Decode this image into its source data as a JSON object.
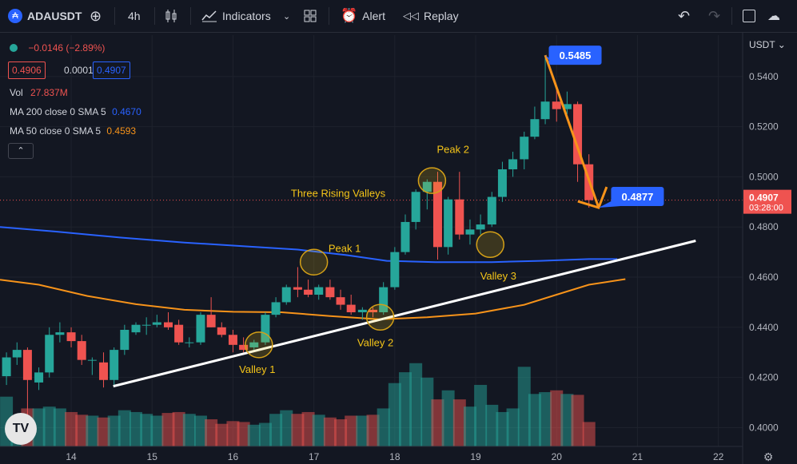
{
  "toolbar": {
    "symbol": "ADAUSDT",
    "interval": "4h",
    "indicators_label": "Indicators",
    "alert_label": "Alert",
    "replay_label": "Replay"
  },
  "legend": {
    "change": "−0.0146 (−2.89%)",
    "bid": "0.4906",
    "spread": "0.0001",
    "ask": "0.4907",
    "vol_label": "Vol",
    "vol_value": "27.837M",
    "ma200_label": "MA 200 close 0 SMA 5",
    "ma200_value": "0.4670",
    "ma50_label": "MA 50 close 0 SMA 5",
    "ma50_value": "0.4593"
  },
  "colors": {
    "up": "#26a69a",
    "down": "#ef5350",
    "ma200": "#2962ff",
    "ma50": "#f7931a",
    "annotation": "#f5c518",
    "callout": "#2962ff"
  },
  "chart_data": {
    "type": "candlestick",
    "symbol": "ADAUSDT",
    "currency_label": "USDT",
    "interval": "4h",
    "ylim": [
      0.3925,
      0.5565
    ],
    "y_ticks": [
      0.4,
      0.42,
      0.44,
      0.46,
      0.48,
      0.5,
      0.52,
      0.54
    ],
    "y_tick_labels": [
      "0.4000",
      "0.4200",
      "0.4400",
      "0.4600",
      "0.4800",
      "0.5000",
      "0.5200",
      "0.5400"
    ],
    "x_range": [
      13.12,
      22.3
    ],
    "x_ticks": [
      14,
      15,
      16,
      17,
      18,
      19,
      20,
      21,
      22
    ],
    "x_tick_labels": [
      "14",
      "15",
      "16",
      "17",
      "18",
      "19",
      "20",
      "21",
      "22"
    ],
    "grid": true,
    "candles": [
      {
        "x": 13.2,
        "o": 0.4205,
        "h": 0.43,
        "l": 0.417,
        "c": 0.428
      },
      {
        "x": 13.33,
        "o": 0.428,
        "h": 0.434,
        "l": 0.425,
        "c": 0.431
      },
      {
        "x": 13.46,
        "o": 0.431,
        "h": 0.432,
        "l": 0.398,
        "c": 0.419
      },
      {
        "x": 13.6,
        "o": 0.418,
        "h": 0.424,
        "l": 0.415,
        "c": 0.422
      },
      {
        "x": 13.73,
        "o": 0.422,
        "h": 0.44,
        "l": 0.42,
        "c": 0.437
      },
      {
        "x": 13.86,
        "o": 0.437,
        "h": 0.442,
        "l": 0.434,
        "c": 0.438
      },
      {
        "x": 14.0,
        "o": 0.438,
        "h": 0.44,
        "l": 0.432,
        "c": 0.4345
      },
      {
        "x": 14.13,
        "o": 0.4345,
        "h": 0.437,
        "l": 0.425,
        "c": 0.427
      },
      {
        "x": 14.26,
        "o": 0.427,
        "h": 0.428,
        "l": 0.421,
        "c": 0.427
      },
      {
        "x": 14.4,
        "o": 0.426,
        "h": 0.43,
        "l": 0.416,
        "c": 0.419
      },
      {
        "x": 14.53,
        "o": 0.419,
        "h": 0.432,
        "l": 0.417,
        "c": 0.431
      },
      {
        "x": 14.66,
        "o": 0.431,
        "h": 0.441,
        "l": 0.429,
        "c": 0.439
      },
      {
        "x": 14.8,
        "o": 0.438,
        "h": 0.442,
        "l": 0.437,
        "c": 0.441
      },
      {
        "x": 14.93,
        "o": 0.441,
        "h": 0.444,
        "l": 0.437,
        "c": 0.441
      },
      {
        "x": 15.06,
        "o": 0.441,
        "h": 0.445,
        "l": 0.44,
        "c": 0.442
      },
      {
        "x": 15.2,
        "o": 0.442,
        "h": 0.446,
        "l": 0.439,
        "c": 0.44
      },
      {
        "x": 15.33,
        "o": 0.441,
        "h": 0.443,
        "l": 0.433,
        "c": 0.434
      },
      {
        "x": 15.46,
        "o": 0.434,
        "h": 0.436,
        "l": 0.432,
        "c": 0.434
      },
      {
        "x": 15.6,
        "o": 0.434,
        "h": 0.446,
        "l": 0.433,
        "c": 0.445
      },
      {
        "x": 15.73,
        "o": 0.445,
        "h": 0.452,
        "l": 0.44,
        "c": 0.44
      },
      {
        "x": 15.86,
        "o": 0.44,
        "h": 0.442,
        "l": 0.436,
        "c": 0.437
      },
      {
        "x": 16.0,
        "o": 0.437,
        "h": 0.439,
        "l": 0.43,
        "c": 0.433
      },
      {
        "x": 16.13,
        "o": 0.433,
        "h": 0.436,
        "l": 0.43,
        "c": 0.431
      },
      {
        "x": 16.26,
        "o": 0.432,
        "h": 0.435,
        "l": 0.431,
        "c": 0.434
      },
      {
        "x": 16.4,
        "o": 0.434,
        "h": 0.446,
        "l": 0.433,
        "c": 0.445
      },
      {
        "x": 16.53,
        "o": 0.445,
        "h": 0.452,
        "l": 0.444,
        "c": 0.45
      },
      {
        "x": 16.66,
        "o": 0.45,
        "h": 0.457,
        "l": 0.449,
        "c": 0.456
      },
      {
        "x": 16.8,
        "o": 0.456,
        "h": 0.464,
        "l": 0.452,
        "c": 0.455
      },
      {
        "x": 16.93,
        "o": 0.455,
        "h": 0.459,
        "l": 0.452,
        "c": 0.453
      },
      {
        "x": 17.06,
        "o": 0.453,
        "h": 0.457,
        "l": 0.451,
        "c": 0.456
      },
      {
        "x": 17.2,
        "o": 0.456,
        "h": 0.459,
        "l": 0.451,
        "c": 0.452
      },
      {
        "x": 17.33,
        "o": 0.452,
        "h": 0.455,
        "l": 0.447,
        "c": 0.449
      },
      {
        "x": 17.46,
        "o": 0.449,
        "h": 0.453,
        "l": 0.445,
        "c": 0.446
      },
      {
        "x": 17.6,
        "o": 0.446,
        "h": 0.448,
        "l": 0.443,
        "c": 0.447
      },
      {
        "x": 17.73,
        "o": 0.447,
        "h": 0.448,
        "l": 0.444,
        "c": 0.446
      },
      {
        "x": 17.86,
        "o": 0.446,
        "h": 0.458,
        "l": 0.445,
        "c": 0.456
      },
      {
        "x": 18.0,
        "o": 0.456,
        "h": 0.472,
        "l": 0.455,
        "c": 0.47
      },
      {
        "x": 18.13,
        "o": 0.47,
        "h": 0.485,
        "l": 0.469,
        "c": 0.482
      },
      {
        "x": 18.26,
        "o": 0.482,
        "h": 0.495,
        "l": 0.479,
        "c": 0.494
      },
      {
        "x": 18.4,
        "o": 0.494,
        "h": 0.499,
        "l": 0.487,
        "c": 0.498
      },
      {
        "x": 18.53,
        "o": 0.498,
        "h": 0.502,
        "l": 0.467,
        "c": 0.472
      },
      {
        "x": 18.66,
        "o": 0.472,
        "h": 0.492,
        "l": 0.469,
        "c": 0.491
      },
      {
        "x": 18.8,
        "o": 0.491,
        "h": 0.502,
        "l": 0.475,
        "c": 0.477
      },
      {
        "x": 18.93,
        "o": 0.477,
        "h": 0.483,
        "l": 0.473,
        "c": 0.479
      },
      {
        "x": 19.06,
        "o": 0.479,
        "h": 0.485,
        "l": 0.477,
        "c": 0.481
      },
      {
        "x": 19.2,
        "o": 0.481,
        "h": 0.494,
        "l": 0.48,
        "c": 0.492
      },
      {
        "x": 19.33,
        "o": 0.492,
        "h": 0.506,
        "l": 0.49,
        "c": 0.503
      },
      {
        "x": 19.46,
        "o": 0.503,
        "h": 0.51,
        "l": 0.5,
        "c": 0.507
      },
      {
        "x": 19.6,
        "o": 0.507,
        "h": 0.518,
        "l": 0.503,
        "c": 0.516
      },
      {
        "x": 19.73,
        "o": 0.516,
        "h": 0.528,
        "l": 0.515,
        "c": 0.523
      },
      {
        "x": 19.86,
        "o": 0.523,
        "h": 0.5485,
        "l": 0.521,
        "c": 0.53
      },
      {
        "x": 20.0,
        "o": 0.53,
        "h": 0.535,
        "l": 0.522,
        "c": 0.527
      },
      {
        "x": 20.13,
        "o": 0.527,
        "h": 0.534,
        "l": 0.525,
        "c": 0.529
      },
      {
        "x": 20.26,
        "o": 0.529,
        "h": 0.53,
        "l": 0.498,
        "c": 0.505
      },
      {
        "x": 20.4,
        "o": 0.505,
        "h": 0.509,
        "l": 0.4877,
        "c": 0.4907
      }
    ],
    "volume": [
      0.55,
      0.28,
      0.42,
      0.42,
      0.44,
      0.42,
      0.38,
      0.35,
      0.34,
      0.32,
      0.34,
      0.4,
      0.38,
      0.36,
      0.34,
      0.37,
      0.38,
      0.36,
      0.34,
      0.3,
      0.25,
      0.28,
      0.27,
      0.24,
      0.26,
      0.36,
      0.4,
      0.36,
      0.38,
      0.35,
      0.32,
      0.3,
      0.34,
      0.34,
      0.35,
      0.42,
      0.7,
      0.82,
      0.92,
      0.76,
      0.52,
      0.62,
      0.52,
      0.44,
      0.68,
      0.46,
      0.38,
      0.42,
      0.88,
      0.58,
      0.6,
      0.62,
      0.58,
      0.57,
      0.27
    ],
    "ma200": [
      [
        13.12,
        0.48
      ],
      [
        13.8,
        0.4782
      ],
      [
        14.6,
        0.4758
      ],
      [
        15.4,
        0.4738
      ],
      [
        16.2,
        0.4722
      ],
      [
        16.8,
        0.471
      ],
      [
        17.4,
        0.4688
      ],
      [
        17.9,
        0.4665
      ],
      [
        18.5,
        0.466
      ],
      [
        19.2,
        0.466
      ],
      [
        19.8,
        0.4665
      ],
      [
        20.4,
        0.4672
      ],
      [
        20.75,
        0.4672
      ]
    ],
    "ma50": [
      [
        13.12,
        0.459
      ],
      [
        13.6,
        0.457
      ],
      [
        14.2,
        0.4525
      ],
      [
        14.8,
        0.4492
      ],
      [
        15.4,
        0.447
      ],
      [
        16.0,
        0.4462
      ],
      [
        16.6,
        0.446
      ],
      [
        17.2,
        0.4445
      ],
      [
        17.8,
        0.4432
      ],
      [
        18.4,
        0.444
      ],
      [
        19.0,
        0.4455
      ],
      [
        19.6,
        0.449
      ],
      [
        20.0,
        0.453
      ],
      [
        20.4,
        0.457
      ],
      [
        20.85,
        0.4592
      ]
    ],
    "trendline": [
      [
        14.52,
        0.4165
      ],
      [
        21.72,
        0.4745
      ]
    ],
    "arrow": {
      "from": [
        19.86,
        0.5485
      ],
      "to": [
        20.52,
        0.4877
      ]
    },
    "callouts": [
      {
        "label": "0.5485",
        "x": 20.23,
        "y": 0.5485
      },
      {
        "label": "0.4877",
        "x": 21.0,
        "y": 0.4877
      }
    ],
    "annotations": [
      {
        "label": "Three Rising Valleys",
        "x": 17.3,
        "y": 0.492
      },
      {
        "label": "Peak 1",
        "x": 17.38,
        "y": 0.47
      },
      {
        "label": "Peak 2",
        "x": 18.72,
        "y": 0.5095
      },
      {
        "label": "Valley 1",
        "x": 16.3,
        "y": 0.4218
      },
      {
        "label": "Valley 2",
        "x": 17.76,
        "y": 0.4325
      },
      {
        "label": "Valley 3",
        "x": 19.28,
        "y": 0.459
      }
    ],
    "circles": [
      [
        16.32,
        0.433
      ],
      [
        17.0,
        0.466
      ],
      [
        17.82,
        0.444
      ],
      [
        18.46,
        0.4985
      ],
      [
        19.18,
        0.473
      ]
    ],
    "current_price": {
      "value": "0.4907",
      "y": 0.4907,
      "time": "03:28:00"
    }
  }
}
